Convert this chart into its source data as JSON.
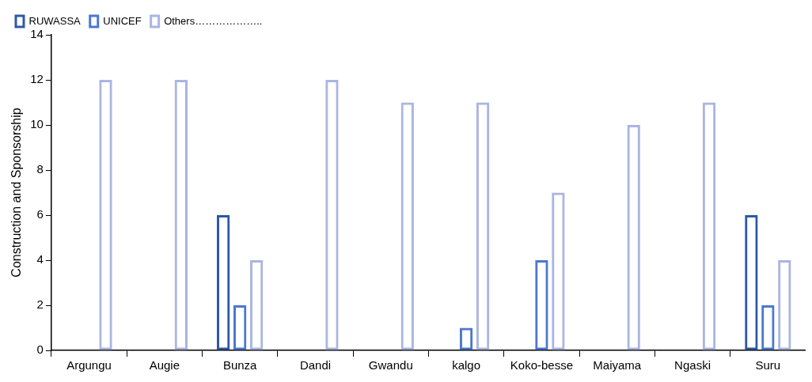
{
  "chart_data": {
    "type": "bar",
    "ylabel": "Construction and Sponsorship",
    "categories": [
      "Argungu",
      "Augie",
      "Bunza",
      "Dandi",
      "Gwandu",
      "kalgo",
      "Koko-besse",
      "Maiyama",
      "Ngaski",
      "Suru"
    ],
    "series": [
      {
        "name": "RUWASSA",
        "color": "#2e58a6",
        "values": [
          0,
          0,
          6,
          0,
          0,
          0,
          0,
          0,
          0,
          6
        ]
      },
      {
        "name": "UNICEF",
        "color": "#4a78d0",
        "values": [
          0,
          0,
          2,
          0,
          0,
          1,
          4,
          0,
          0,
          2
        ]
      },
      {
        "name": "Others………………..",
        "color": "#aab5e2",
        "values": [
          12,
          12,
          4,
          12,
          11,
          11,
          7,
          10,
          11,
          4
        ]
      }
    ],
    "ylim": [
      0,
      14
    ],
    "yticks": [
      0,
      2,
      4,
      6,
      8,
      10,
      12,
      14
    ],
    "grid": false,
    "legend": "top left"
  }
}
